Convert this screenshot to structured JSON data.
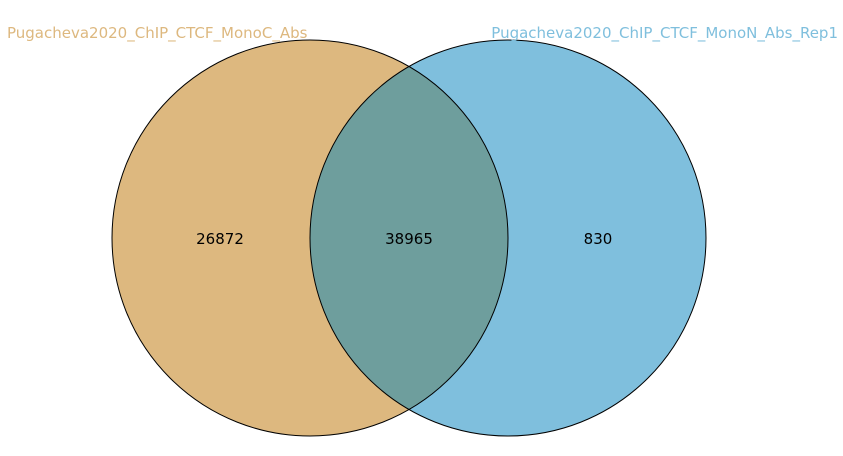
{
  "sets": [
    {
      "label": "Pugacheva2020_ChIP_CTCF_MonoC_Abs",
      "color": "#DDB87F"
    },
    {
      "label": "Pugacheva2020_ChIP_CTCF_MonoN_Abs_Rep1",
      "color": "#7FBFDD"
    }
  ],
  "regions": {
    "left_only": "26872",
    "overlap": "38965",
    "right_only": "830"
  },
  "overlap_color": "#6E9E9D",
  "outline_color": "#000000"
}
